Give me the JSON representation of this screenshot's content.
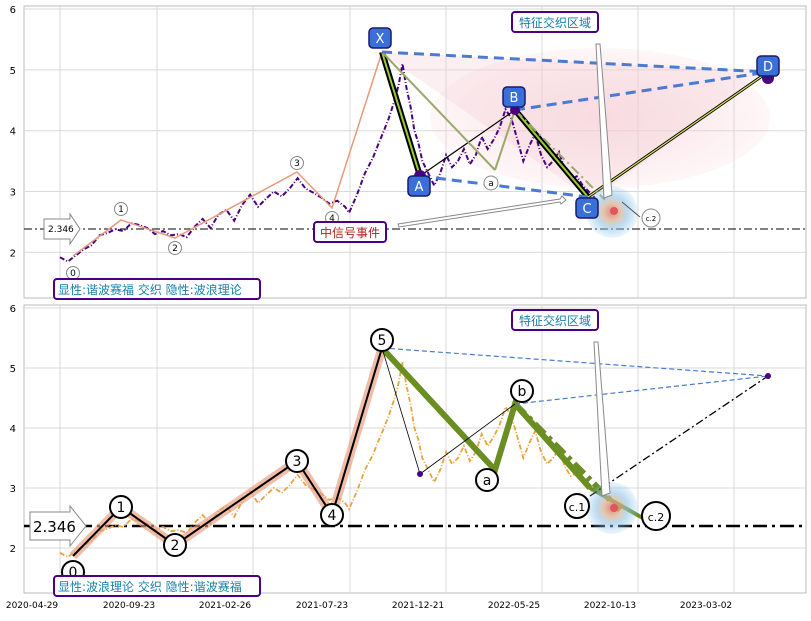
{
  "chart_data": [
    {
      "type": "line",
      "panel": "top",
      "ylim": [
        1.25,
        6.05
      ],
      "yticks": [
        "2",
        "3",
        "4",
        "5",
        "6"
      ],
      "grid": true,
      "price_series": [
        [
          0,
          1.92
        ],
        [
          8,
          1.85
        ],
        [
          16,
          1.95
        ],
        [
          24,
          2.05
        ],
        [
          32,
          2.12
        ],
        [
          40,
          2.28
        ],
        [
          48,
          2.32
        ],
        [
          56,
          2.38
        ],
        [
          64,
          2.35
        ],
        [
          72,
          2.48
        ],
        [
          80,
          2.45
        ],
        [
          88,
          2.4
        ],
        [
          96,
          2.3
        ],
        [
          104,
          2.35
        ],
        [
          112,
          2.28
        ],
        [
          120,
          2.3
        ],
        [
          128,
          2.25
        ],
        [
          136,
          2.42
        ],
        [
          144,
          2.55
        ],
        [
          152,
          2.4
        ],
        [
          160,
          2.62
        ],
        [
          168,
          2.7
        ],
        [
          176,
          2.52
        ],
        [
          184,
          2.78
        ],
        [
          192,
          2.95
        ],
        [
          200,
          2.75
        ],
        [
          208,
          2.88
        ],
        [
          216,
          3.0
        ],
        [
          224,
          2.92
        ],
        [
          232,
          3.05
        ],
        [
          240,
          3.22
        ],
        [
          248,
          3.05
        ],
        [
          256,
          2.98
        ],
        [
          264,
          2.9
        ],
        [
          272,
          2.8
        ],
        [
          280,
          2.85
        ],
        [
          288,
          2.75
        ],
        [
          292,
          2.65
        ],
        [
          300,
          2.95
        ],
        [
          308,
          3.3
        ],
        [
          316,
          3.55
        ],
        [
          322,
          3.8
        ],
        [
          326,
          3.95
        ],
        [
          332,
          4.2
        ],
        [
          338,
          4.5
        ],
        [
          342,
          4.75
        ],
        [
          346,
          5.1
        ],
        [
          350,
          4.7
        ],
        [
          354,
          4.4
        ],
        [
          358,
          4.0
        ],
        [
          362,
          3.8
        ],
        [
          366,
          3.5
        ],
        [
          372,
          3.3
        ],
        [
          378,
          3.1
        ],
        [
          384,
          3.3
        ],
        [
          390,
          3.6
        ],
        [
          396,
          3.4
        ],
        [
          402,
          3.5
        ],
        [
          408,
          3.7
        ],
        [
          414,
          3.45
        ],
        [
          420,
          3.6
        ],
        [
          426,
          3.9
        ],
        [
          432,
          3.7
        ],
        [
          438,
          3.85
        ],
        [
          444,
          4.05
        ],
        [
          450,
          4.35
        ],
        [
          456,
          4.2
        ],
        [
          462,
          3.85
        ],
        [
          468,
          3.5
        ],
        [
          474,
          3.75
        ],
        [
          480,
          3.95
        ],
        [
          486,
          3.6
        ],
        [
          492,
          3.4
        ],
        [
          498,
          3.5
        ],
        [
          504,
          3.65
        ],
        [
          510,
          3.35
        ],
        [
          516,
          3.2
        ],
        [
          522,
          3.25
        ],
        [
          528,
          3.1
        ],
        [
          534,
          3.0
        ],
        [
          540,
          2.9
        ]
      ],
      "y_at_x": {
        "X": 5.38,
        "A": 3.25,
        "B": 4.35,
        "C": 2.85,
        "D": 4.88
      },
      "wave_points": [
        {
          "label": "0",
          "y": 1.85
        },
        {
          "label": "1",
          "y": 2.5
        },
        {
          "label": "2",
          "y": 2.22
        },
        {
          "label": "3",
          "y": 3.32
        },
        {
          "label": "4",
          "y": 2.7
        }
      ],
      "abcd_labels": [
        "X",
        "A",
        "B",
        "C",
        "D"
      ],
      "sub_labels": [
        "a",
        "c.2"
      ],
      "threshold": "2.346",
      "annotations": {
        "feature_box": "特征交织区域",
        "signal_box": "中信号事件",
        "caption": "显性:谐波赛福 交织 隐性:波浪理论"
      }
    },
    {
      "type": "line",
      "panel": "bottom",
      "ylim": [
        1.25,
        6.05
      ],
      "yticks": [
        "2",
        "3",
        "4",
        "5",
        "6"
      ],
      "xticks": [
        "2020-04-29",
        "2020-09-23",
        "2021-02-26",
        "2021-07-23",
        "2021-12-21",
        "2022-05-25",
        "2022-10-13",
        "2023-03-02"
      ],
      "grid": true,
      "wave_points": [
        {
          "label": "0",
          "y": 1.85
        },
        {
          "label": "1",
          "y": 2.5
        },
        {
          "label": "2",
          "y": 2.22
        },
        {
          "label": "3",
          "y": 3.32
        },
        {
          "label": "4",
          "y": 2.7
        },
        {
          "label": "5",
          "y": 5.38
        },
        {
          "label": "a",
          "y": 3.3
        },
        {
          "label": "b",
          "y": 4.4
        },
        {
          "label": "c.1",
          "y": 2.7
        },
        {
          "label": "c.2",
          "y": 2.4
        }
      ],
      "threshold": "2.346",
      "annotations": {
        "feature_box": "特征交织区域",
        "caption": "显性:波浪理论 交织 隐性:谐波赛福"
      }
    }
  ],
  "colors": {
    "purple": "#4b0082",
    "orange": "#e8a33a",
    "blue_dash": "#4a7bd0",
    "olive": "#6b8e23",
    "salmon": "#e8997a",
    "label_text": "#1b7fa8",
    "signal_text": "#b22222"
  }
}
